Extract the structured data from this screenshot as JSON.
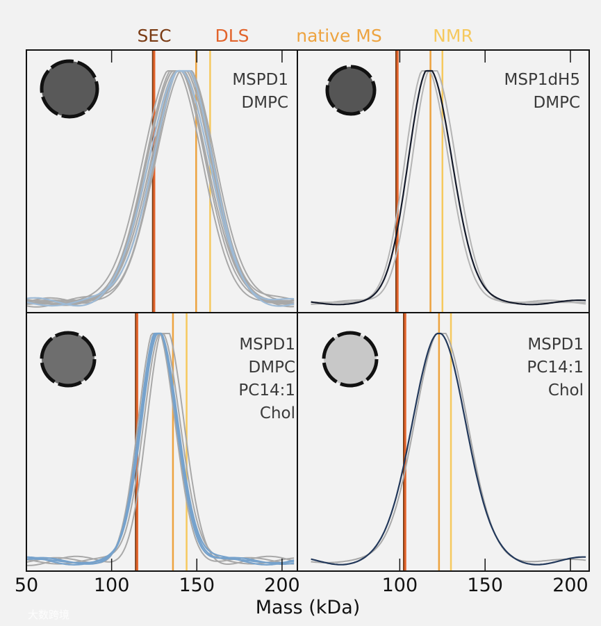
{
  "chart_data": {
    "type": "line",
    "title": "",
    "xlabel": "Mass (kDa)",
    "ylabel": "",
    "legend_position": "top",
    "methods": [
      {
        "name": "SEC",
        "color": "#7a3b14"
      },
      {
        "name": "DLS",
        "color": "#e2642c"
      },
      {
        "name": "native MS",
        "color": "#eda33f"
      },
      {
        "name": "NMR",
        "color": "#f6c95e"
      }
    ],
    "panels": [
      {
        "id": "top-left",
        "labels": [
          "MSPD1",
          "DMPC"
        ],
        "xlim": [
          50,
          209
        ],
        "xticks": [
          50,
          100,
          150,
          200
        ],
        "disc_color": "#595959",
        "method_values": {
          "SEC": 124.3,
          "DLS": 125,
          "native MS": 149.6,
          "NMR": 157.8
        },
        "distribution": {
          "peak": 141,
          "fwhm_left": 21,
          "fwhm_right": 20
        },
        "replicate_peaks_gray": [
          136,
          138,
          139,
          140,
          141,
          142,
          143,
          144,
          141,
          139
        ],
        "replicate_peaks_blue": [
          140,
          142
        ],
        "curve_color_gray": "#a8a8a8",
        "curve_color_main": "#9dbad6"
      },
      {
        "id": "top-right",
        "labels": [
          "MSP1dH5",
          "DMPC"
        ],
        "xlim": [
          40,
          211
        ],
        "xticks": [
          100,
          150,
          200
        ],
        "disc_color": "#555555",
        "method_values": {
          "SEC": 98,
          "DLS": 98.7,
          "native MS": 118,
          "NMR": 125
        },
        "distribution": {
          "peak": 117,
          "fwhm_left": 14,
          "fwhm_right": 16
        },
        "replicate_peaks_gray": [
          115,
          119
        ],
        "replicate_peaks_blue": [
          117
        ],
        "curve_color_gray": "#b4b4b4",
        "curve_color_main": "#141a2a"
      },
      {
        "id": "bottom-left",
        "labels": [
          "MSPD1",
          "DMPC",
          "PC14:1",
          "Chol"
        ],
        "xlim": [
          50,
          209
        ],
        "xticks": [
          50,
          100,
          150,
          200
        ],
        "disc_color": "#6e6e6e",
        "method_values": {
          "SEC": 114.3,
          "DLS": 115,
          "native MS": 136,
          "NMR": 144
        },
        "distribution": {
          "peak": 127.5,
          "fwhm_left": 12,
          "fwhm_right": 13
        },
        "replicate_peaks_gray": [
          126,
          129,
          131
        ],
        "replicate_peaks_blue": [
          127,
          128,
          127.5
        ],
        "curve_color_gray": "#a8a8a8",
        "curve_color_main": "#76a2cc"
      },
      {
        "id": "bottom-right",
        "labels": [
          "MSPD1",
          "PC14:1",
          "Chol"
        ],
        "xlim": [
          40,
          211
        ],
        "xticks": [
          100,
          150,
          200
        ],
        "disc_color": "#c8c8c8",
        "method_values": {
          "SEC": 102.5,
          "DLS": 103.2,
          "native MS": 123,
          "NMR": 130
        },
        "distribution": {
          "peak": 123,
          "fwhm_left": 18,
          "fwhm_right": 18
        },
        "replicate_peaks_gray": [
          124
        ],
        "replicate_peaks_blue": [
          123
        ],
        "curve_color_gray": "#a8a8a8",
        "curve_color_main": "#22385a"
      }
    ]
  },
  "watermark": "大数跨境"
}
